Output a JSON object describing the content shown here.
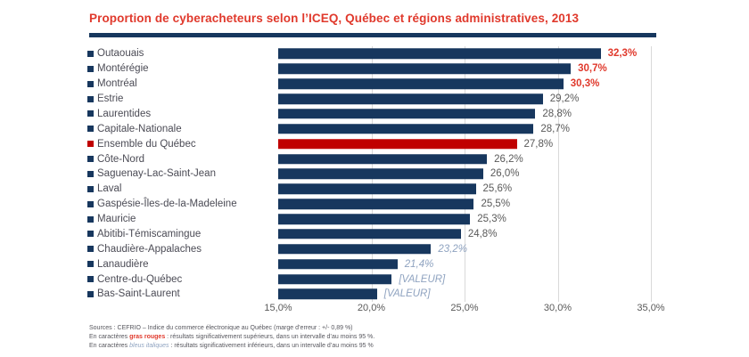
{
  "title": "Proportion de cyberacheteurs selon l’ICEQ, Québec et régions administratives, 2013",
  "colors": {
    "navy": "#17375E",
    "red_bar": "#C00000",
    "red_text": "#E0392C",
    "gray_text": "#595959",
    "label_text": "#4B4B55",
    "blue_italic_text": "#8FA3C0",
    "gridline": "#D9D9D9"
  },
  "chart_data": {
    "type": "bar",
    "orientation": "horizontal",
    "title": "Proportion de cyberacheteurs selon l’ICEQ, Québec et régions administratives, 2013",
    "xlim": [
      15,
      35
    ],
    "x_ticks": [
      "15,0%",
      "20,0%",
      "25,0%",
      "30,0%",
      "35,0%"
    ],
    "x_tick_values": [
      15,
      20,
      25,
      30,
      35
    ],
    "gridline_values": [
      20,
      25,
      30,
      35
    ],
    "grid": true,
    "legend_position": "none",
    "rows": [
      {
        "label": "Outaouais",
        "value": 32.3,
        "display": "32,3%",
        "style": "red-bold",
        "bar": "navy"
      },
      {
        "label": "Montérégie",
        "value": 30.7,
        "display": "30,7%",
        "style": "red-bold",
        "bar": "navy"
      },
      {
        "label": "Montréal",
        "value": 30.3,
        "display": "30,3%",
        "style": "red-bold",
        "bar": "navy"
      },
      {
        "label": "Estrie",
        "value": 29.2,
        "display": "29,2%",
        "style": "gray",
        "bar": "navy"
      },
      {
        "label": "Laurentides",
        "value": 28.8,
        "display": "28,8%",
        "style": "gray",
        "bar": "navy"
      },
      {
        "label": "Capitale-Nationale",
        "value": 28.7,
        "display": "28,7%",
        "style": "gray",
        "bar": "navy"
      },
      {
        "label": "Ensemble du Québec",
        "value": 27.8,
        "display": "27,8%",
        "style": "gray",
        "bar": "red"
      },
      {
        "label": "Côte-Nord",
        "value": 26.2,
        "display": "26,2%",
        "style": "gray",
        "bar": "navy"
      },
      {
        "label": "Saguenay-Lac-Saint-Jean",
        "value": 26.0,
        "display": "26,0%",
        "style": "gray",
        "bar": "navy"
      },
      {
        "label": "Laval",
        "value": 25.6,
        "display": "25,6%",
        "style": "gray",
        "bar": "navy"
      },
      {
        "label": "Gaspésie-Îles-de-la-Madeleine",
        "value": 25.5,
        "display": "25,5%",
        "style": "gray",
        "bar": "navy"
      },
      {
        "label": "Mauricie",
        "value": 25.3,
        "display": "25,3%",
        "style": "gray",
        "bar": "navy"
      },
      {
        "label": "Abitibi-Témiscamingue",
        "value": 24.8,
        "display": "24,8%",
        "style": "gray",
        "bar": "navy"
      },
      {
        "label": "Chaudière-Appalaches",
        "value": 23.2,
        "display": "23,2%",
        "style": "blue-italic",
        "bar": "navy"
      },
      {
        "label": "Lanaudière",
        "value": 21.4,
        "display": "21,4%",
        "style": "blue-italic",
        "bar": "navy"
      },
      {
        "label": "Centre-du-Québec",
        "value": 21.1,
        "display": "[VALEUR]",
        "style": "blue-italic",
        "bar": "navy"
      },
      {
        "label": "Bas-Saint-Laurent",
        "value": 20.3,
        "display": "[VALEUR]",
        "style": "blue-italic",
        "bar": "navy"
      }
    ]
  },
  "footer": {
    "line1": "Sources : CEFRIO – Indice du commerce électronique au Québec (marge d’erreur : +/- 0,89 %)",
    "line2_prefix": "En caractères ",
    "line2_highlight": "gras rouges",
    "line2_suffix": " : résultats significativement supérieurs, dans un intervalle d’au moins 95 %.",
    "line3_prefix": "En caractères ",
    "line3_highlight": "bleus italiques",
    "line3_suffix": " : résultats significativement inférieurs, dans un intervalle d’au moins 95 %"
  }
}
